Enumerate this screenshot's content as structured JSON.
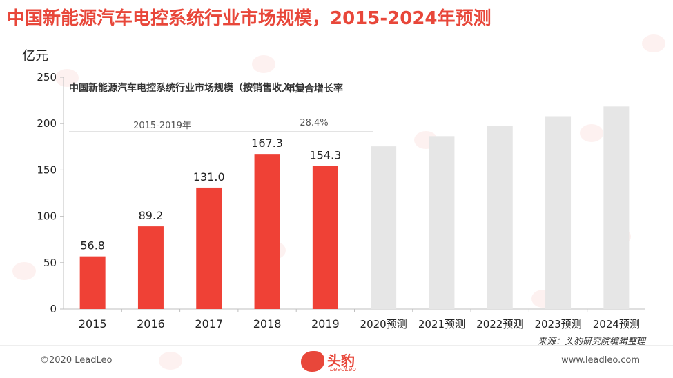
{
  "title": "中国新能源汽车电控系统行业市场规模，2015-2024年预测",
  "unit_label": "亿元",
  "cagr_table": {
    "header_metric": "中国新能源汽车电控系统行业市场规模（按销售收入计）",
    "header_rate": "年复合增长率",
    "period": "2015-2019年",
    "rate": "28.4%"
  },
  "source": "来源：头豹研究院编辑整理",
  "footer": {
    "copyright": "©2020 LeadLeo",
    "website": "www.leadleo.com",
    "logo_text": "头豹",
    "logo_sub": "LeadLeo"
  },
  "colors": {
    "title": "#e8473a",
    "actual_bar": "#ef4136",
    "forecast_bar": "#e6e6e6",
    "axis": "#bfbfbf"
  },
  "chart_data": {
    "type": "bar",
    "categories": [
      "2015",
      "2016",
      "2017",
      "2018",
      "2019",
      "2020预测",
      "2021预测",
      "2022预测",
      "2023预测",
      "2024预测"
    ],
    "series": [
      {
        "values": [
          56.8,
          89.2,
          131.0,
          167.3,
          154.3,
          175.5,
          186.5,
          197.5,
          208.0,
          218.5
        ],
        "data_labels": [
          "56.8",
          "89.2",
          "131.0",
          "167.3",
          "154.3",
          "",
          "",
          "",
          "",
          ""
        ],
        "kinds": [
          "actual",
          "actual",
          "actual",
          "actual",
          "actual",
          "forecast",
          "forecast",
          "forecast",
          "forecast",
          "forecast"
        ]
      }
    ],
    "ylabel": "亿元",
    "ylim": [
      0,
      250
    ],
    "yticks": [
      0,
      50,
      100,
      150,
      200,
      250
    ],
    "grid": false,
    "legend": "none"
  }
}
